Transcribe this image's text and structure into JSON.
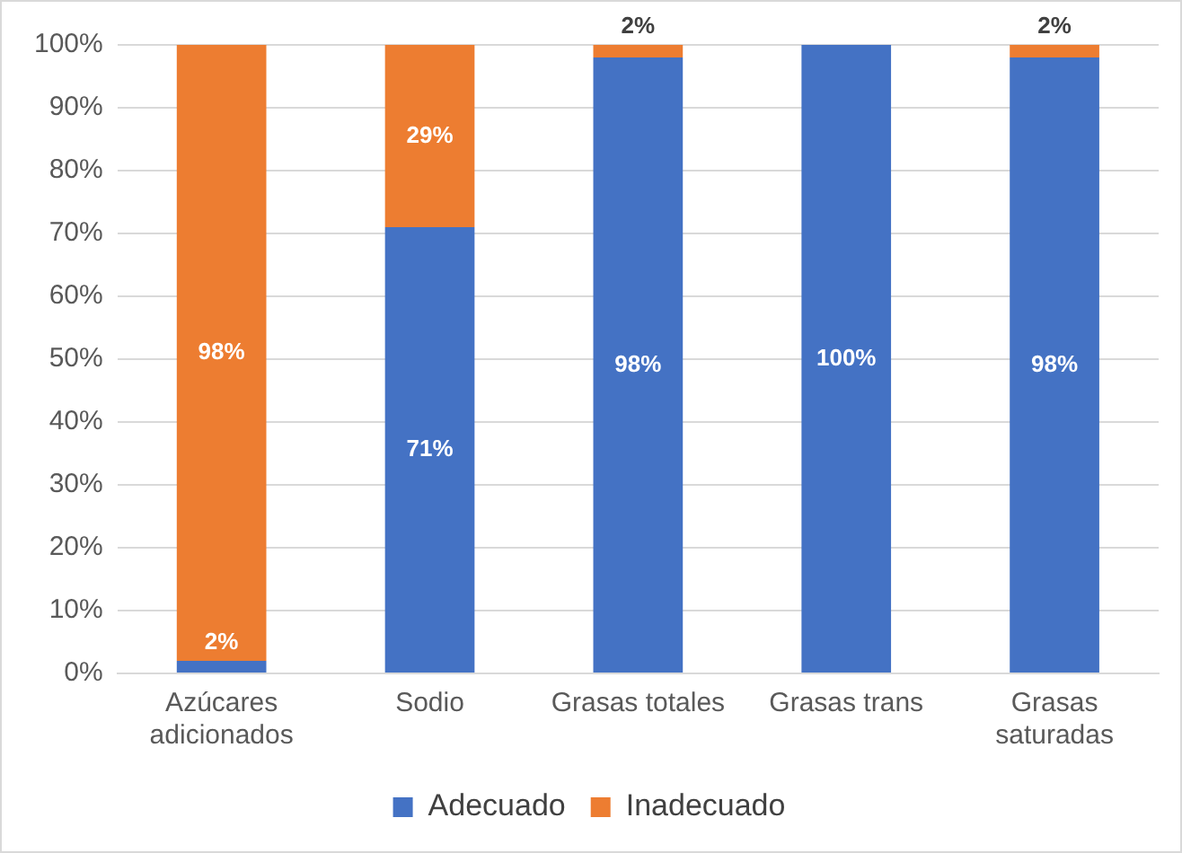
{
  "chart_data": {
    "type": "bar",
    "stacked": true,
    "categories": [
      "Azúcares adicionados",
      "Sodio",
      "Grasas totales",
      "Grasas trans",
      "Grasas saturadas"
    ],
    "series": [
      {
        "name": "Adecuado",
        "color": "#4472c4",
        "values": [
          2,
          71,
          98,
          100,
          98
        ],
        "value_labels": [
          "2%",
          "71%",
          "98%",
          "100%",
          "98%"
        ]
      },
      {
        "name": "Inadecuado",
        "color": "#ed7d31",
        "values": [
          98,
          29,
          2,
          0,
          2
        ],
        "value_labels": [
          "98%",
          "29%",
          "2%",
          null,
          "2%"
        ]
      }
    ],
    "ylim": [
      0,
      100
    ],
    "yticks": [
      {
        "value": 0,
        "label": "0%"
      },
      {
        "value": 10,
        "label": "10%"
      },
      {
        "value": 20,
        "label": "20%"
      },
      {
        "value": 30,
        "label": "30%"
      },
      {
        "value": 40,
        "label": "40%"
      },
      {
        "value": 50,
        "label": "50%"
      },
      {
        "value": 60,
        "label": "60%"
      },
      {
        "value": 70,
        "label": "70%"
      },
      {
        "value": 80,
        "label": "80%"
      },
      {
        "value": 90,
        "label": "90%"
      },
      {
        "value": 100,
        "label": "100%"
      }
    ],
    "grid": "y",
    "legend": "bottom"
  }
}
